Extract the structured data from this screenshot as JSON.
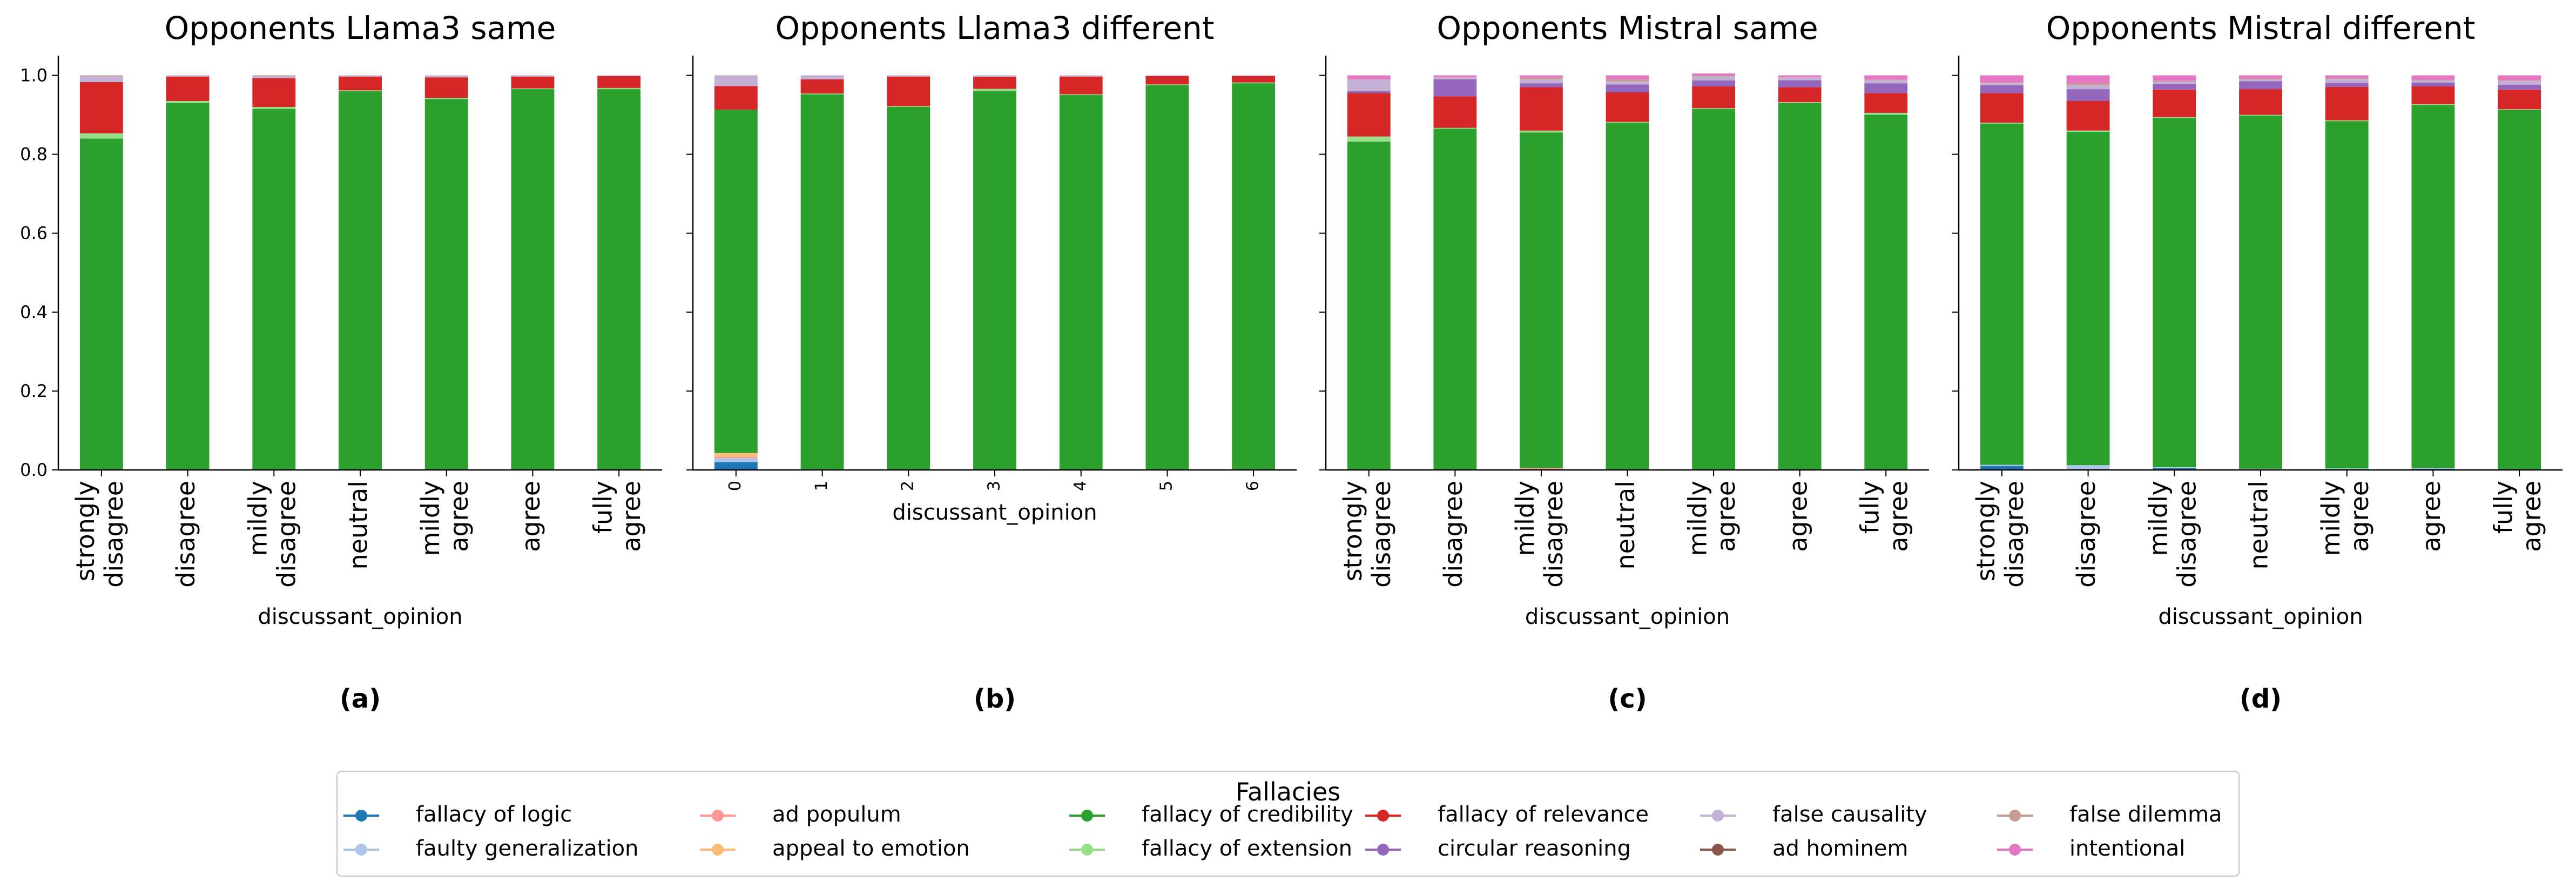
{
  "legend": {
    "title": "Fallacies",
    "placement": "bottom-center",
    "items": [
      {
        "label": "fallacy of logic",
        "color": "#1f77b4"
      },
      {
        "label": "faulty generalization",
        "color": "#aec7e8"
      },
      {
        "label": "ad populum",
        "color": "#ff9896"
      },
      {
        "label": "appeal to emotion",
        "color": "#ffbb78"
      },
      {
        "label": "fallacy of credibility",
        "color": "#2ca02c"
      },
      {
        "label": "fallacy of extension",
        "color": "#98df8a"
      },
      {
        "label": "fallacy of relevance",
        "color": "#d62728"
      },
      {
        "label": "circular reasoning",
        "color": "#9467bd"
      },
      {
        "label": "false causality",
        "color": "#c5b0d5"
      },
      {
        "label": "ad hominem",
        "color": "#8c564b"
      },
      {
        "label": "false dilemma",
        "color": "#c49c94"
      },
      {
        "label": "intentional",
        "color": "#e377c2"
      }
    ]
  },
  "chart_data": [
    {
      "type": "bar",
      "stacked": true,
      "title": "Opponents Llama3 same",
      "caption": "(a)",
      "xlabel": "discussant_opinion",
      "ylabel": "",
      "ylim": [
        0,
        1.05
      ],
      "yticks": [
        "0.0",
        "0.2",
        "0.4",
        "0.6",
        "0.8",
        "1.0"
      ],
      "categories": [
        "strongly\ndisagree",
        "disagree",
        "mildly\ndisagree",
        "neutral",
        "mildly\nagree",
        "agree",
        "fully\nagree"
      ],
      "series": [
        {
          "name": "fallacy of logic",
          "values": [
            0,
            0,
            0,
            0,
            0,
            0,
            0
          ]
        },
        {
          "name": "faulty generalization",
          "values": [
            0,
            0,
            0,
            0,
            0,
            0,
            0
          ]
        },
        {
          "name": "ad populum",
          "values": [
            0,
            0,
            0,
            0,
            0,
            0,
            0
          ]
        },
        {
          "name": "appeal to emotion",
          "values": [
            0,
            0,
            0,
            0,
            0,
            0,
            0
          ]
        },
        {
          "name": "fallacy of credibility",
          "values": [
            0.84,
            0.93,
            0.915,
            0.96,
            0.94,
            0.965,
            0.965
          ]
        },
        {
          "name": "fallacy of extension",
          "values": [
            0.013,
            0.005,
            0.005,
            0.002,
            0.003,
            0.002,
            0.003
          ]
        },
        {
          "name": "fallacy of relevance",
          "values": [
            0.13,
            0.062,
            0.073,
            0.035,
            0.052,
            0.03,
            0.03
          ]
        },
        {
          "name": "circular reasoning",
          "values": [
            0,
            0,
            0,
            0,
            0,
            0,
            0
          ]
        },
        {
          "name": "false causality",
          "values": [
            0.015,
            0.003,
            0.005,
            0.003,
            0.005,
            0.003,
            0.002
          ]
        },
        {
          "name": "ad hominem",
          "values": [
            0,
            0,
            0,
            0,
            0,
            0,
            0
          ]
        },
        {
          "name": "false dilemma",
          "values": [
            0.002,
            0,
            0.002,
            0,
            0,
            0,
            0
          ]
        },
        {
          "name": "intentional",
          "values": [
            0,
            0,
            0,
            0,
            0,
            0,
            0
          ]
        }
      ]
    },
    {
      "type": "bar",
      "stacked": true,
      "title": "Opponents Llama3 different",
      "caption": "(b)",
      "xlabel": "discussant_opinion",
      "ylabel": "",
      "ylim": [
        0,
        1.05
      ],
      "yticks": [
        "0.0",
        "0.2",
        "0.4",
        "0.6",
        "0.8",
        "1.0"
      ],
      "categories": [
        "0",
        "1",
        "2",
        "3",
        "4",
        "5",
        "6"
      ],
      "series": [
        {
          "name": "fallacy of logic",
          "values": [
            0.02,
            0,
            0,
            0,
            0,
            0,
            0
          ]
        },
        {
          "name": "faulty generalization",
          "values": [
            0.01,
            0.002,
            0,
            0,
            0,
            0,
            0
          ]
        },
        {
          "name": "ad populum",
          "values": [
            0.003,
            0,
            0,
            0,
            0,
            0,
            0
          ]
        },
        {
          "name": "appeal to emotion",
          "values": [
            0.01,
            0,
            0,
            0,
            0,
            0,
            0
          ]
        },
        {
          "name": "fallacy of credibility",
          "values": [
            0.87,
            0.95,
            0.92,
            0.96,
            0.95,
            0.975,
            0.98
          ]
        },
        {
          "name": "fallacy of extension",
          "values": [
            0,
            0.002,
            0.002,
            0.006,
            0.002,
            0.002,
            0.002
          ]
        },
        {
          "name": "fallacy of relevance",
          "values": [
            0.06,
            0.036,
            0.075,
            0.03,
            0.045,
            0.021,
            0.016
          ]
        },
        {
          "name": "circular reasoning",
          "values": [
            0,
            0,
            0,
            0,
            0,
            0,
            0
          ]
        },
        {
          "name": "false causality",
          "values": [
            0.027,
            0.01,
            0.003,
            0.004,
            0.003,
            0.002,
            0.002
          ]
        },
        {
          "name": "ad hominem",
          "values": [
            0,
            0,
            0,
            0,
            0,
            0,
            0
          ]
        },
        {
          "name": "false dilemma",
          "values": [
            0,
            0,
            0,
            0,
            0,
            0,
            0
          ]
        },
        {
          "name": "intentional",
          "values": [
            0,
            0,
            0,
            0,
            0,
            0,
            0
          ]
        }
      ]
    },
    {
      "type": "bar",
      "stacked": true,
      "title": "Opponents Mistral same",
      "caption": "(c)",
      "xlabel": "discussant_opinion",
      "ylabel": "",
      "ylim": [
        0,
        1.05
      ],
      "yticks": [
        "0.0",
        "0.2",
        "0.4",
        "0.6",
        "0.8",
        "1.0"
      ],
      "categories": [
        "strongly\ndisagree",
        "disagree",
        "mildly\ndisagree",
        "neutral",
        "mildly\nagree",
        "agree",
        "fully\nagree"
      ],
      "series": [
        {
          "name": "fallacy of logic",
          "values": [
            0,
            0,
            0,
            0,
            0,
            0,
            0
          ]
        },
        {
          "name": "faulty generalization",
          "values": [
            0,
            0,
            0,
            0,
            0,
            0,
            0
          ]
        },
        {
          "name": "ad populum",
          "values": [
            0,
            0,
            0.005,
            0,
            0,
            0,
            0
          ]
        },
        {
          "name": "appeal to emotion",
          "values": [
            0,
            0,
            0,
            0,
            0,
            0,
            0
          ]
        },
        {
          "name": "fallacy of credibility",
          "values": [
            0.832,
            0.865,
            0.85,
            0.88,
            0.915,
            0.93,
            0.9
          ]
        },
        {
          "name": "fallacy of extension",
          "values": [
            0.013,
            0.002,
            0.005,
            0.002,
            0.002,
            0.002,
            0.005
          ]
        },
        {
          "name": "fallacy of relevance",
          "values": [
            0.11,
            0.08,
            0.11,
            0.075,
            0.055,
            0.038,
            0.05
          ]
        },
        {
          "name": "circular reasoning",
          "values": [
            0.005,
            0.043,
            0.01,
            0.02,
            0.015,
            0.018,
            0.025
          ]
        },
        {
          "name": "false causality",
          "values": [
            0.03,
            0.005,
            0.01,
            0.008,
            0.01,
            0.007,
            0.008
          ]
        },
        {
          "name": "ad hominem",
          "values": [
            0,
            0,
            0,
            0,
            0,
            0,
            0
          ]
        },
        {
          "name": "false dilemma",
          "values": [
            0,
            0,
            0.004,
            0.005,
            0.003,
            0,
            0.002
          ]
        },
        {
          "name": "intentional",
          "values": [
            0.01,
            0.005,
            0.006,
            0.01,
            0.005,
            0.005,
            0.01
          ]
        }
      ]
    },
    {
      "type": "bar",
      "stacked": true,
      "title": "Opponents Mistral different",
      "caption": "(d)",
      "xlabel": "discussant_opinion",
      "ylabel": "",
      "ylim": [
        0,
        1.05
      ],
      "yticks": [
        "0.0",
        "0.2",
        "0.4",
        "0.6",
        "0.8",
        "1.0"
      ],
      "categories": [
        "strongly\ndisagree",
        "disagree",
        "mildly\ndisagree",
        "neutral",
        "mildly\nagree",
        "agree",
        "fully\nagree"
      ],
      "series": [
        {
          "name": "fallacy of logic",
          "values": [
            0.01,
            0.002,
            0.005,
            0,
            0.002,
            0.003,
            0.002
          ]
        },
        {
          "name": "faulty generalization",
          "values": [
            0.003,
            0.01,
            0.002,
            0.003,
            0.002,
            0.002,
            0
          ]
        },
        {
          "name": "ad populum",
          "values": [
            0,
            0,
            0,
            0,
            0,
            0,
            0
          ]
        },
        {
          "name": "appeal to emotion",
          "values": [
            0,
            0,
            0,
            0,
            0,
            0,
            0
          ]
        },
        {
          "name": "fallacy of credibility",
          "values": [
            0.865,
            0.845,
            0.885,
            0.895,
            0.88,
            0.92,
            0.91
          ]
        },
        {
          "name": "fallacy of extension",
          "values": [
            0.002,
            0.003,
            0.002,
            0.002,
            0.002,
            0.002,
            0.002
          ]
        },
        {
          "name": "fallacy of relevance",
          "values": [
            0.075,
            0.075,
            0.07,
            0.065,
            0.085,
            0.045,
            0.05
          ]
        },
        {
          "name": "circular reasoning",
          "values": [
            0.02,
            0.03,
            0.015,
            0.02,
            0.01,
            0.01,
            0.012
          ]
        },
        {
          "name": "false causality",
          "values": [
            0.005,
            0.01,
            0.005,
            0.005,
            0.01,
            0.005,
            0.01
          ]
        },
        {
          "name": "ad hominem",
          "values": [
            0,
            0,
            0,
            0,
            0,
            0,
            0
          ]
        },
        {
          "name": "false dilemma",
          "values": [
            0.002,
            0.005,
            0.002,
            0.002,
            0.002,
            0.002,
            0.002
          ]
        },
        {
          "name": "intentional",
          "values": [
            0.018,
            0.02,
            0.014,
            0.008,
            0.007,
            0.011,
            0.012
          ]
        }
      ]
    }
  ]
}
